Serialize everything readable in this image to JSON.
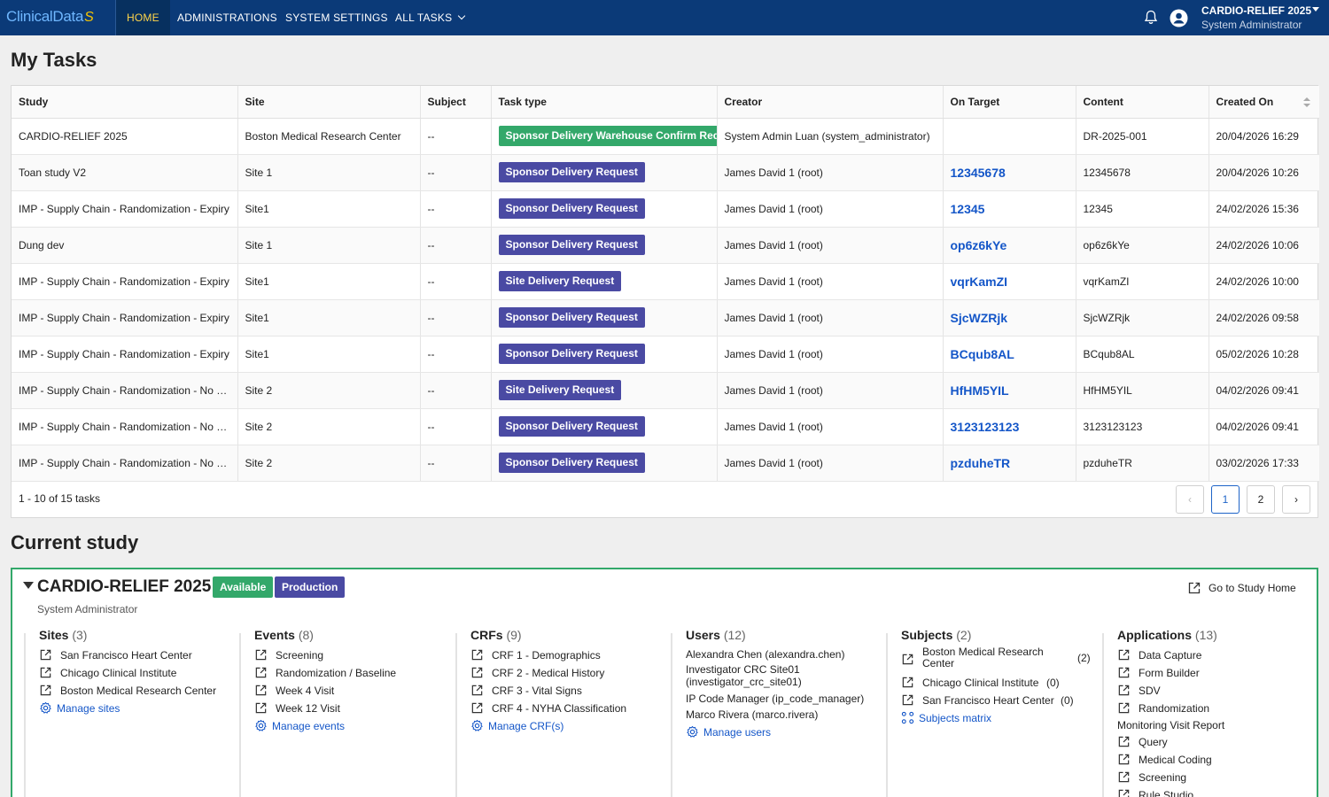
{
  "nav": {
    "logo_text": "ClinicalData",
    "logo_mark": "S",
    "items": [
      {
        "label": "HOME",
        "active": true
      },
      {
        "label": "ADMINISTRATIONS"
      },
      {
        "label": "SYSTEM SETTINGS"
      },
      {
        "label": "ALL TASKS"
      }
    ],
    "user_name": "CARDIO-RELIEF 2025",
    "user_role": "System Administrator"
  },
  "tasks": {
    "heading": "My Tasks",
    "columns": [
      "Study",
      "Site",
      "Subject",
      "Task type",
      "Creator",
      "On Target",
      "Content",
      "Created On"
    ],
    "rows": [
      {
        "study": "CARDIO-RELIEF 2025",
        "site": "Boston Medical Research Center",
        "subject": "--",
        "task_type": "Sponsor Delivery Warehouse Confirm Request",
        "task_color": "green",
        "creator": "System Admin Luan (system_administrator)",
        "on_target": "",
        "content": "DR-2025-001",
        "created_on": "20/04/2026 16:29"
      },
      {
        "study": "Toan study V2",
        "site": "Site 1",
        "subject": "--",
        "task_type": "Sponsor Delivery Request",
        "task_color": "purple",
        "creator": "James David 1 (root)",
        "on_target": "12345678",
        "content": "12345678",
        "created_on": "20/04/2026 10:26"
      },
      {
        "study": "IMP - Supply Chain - Randomization - Expiry",
        "site": "Site1",
        "subject": "--",
        "task_type": "Sponsor Delivery Request",
        "task_color": "purple",
        "creator": "James David 1 (root)",
        "on_target": "12345",
        "content": "12345",
        "created_on": "24/02/2026 15:36"
      },
      {
        "study": "Dung dev",
        "site": "Site 1",
        "subject": "--",
        "task_type": "Sponsor Delivery Request",
        "task_color": "purple",
        "creator": "James David 1 (root)",
        "on_target": "op6z6kYe",
        "content": "op6z6kYe",
        "created_on": "24/02/2026 10:06"
      },
      {
        "study": "IMP - Supply Chain - Randomization - Expiry",
        "site": "Site1",
        "subject": "--",
        "task_type": "Site Delivery Request",
        "task_color": "purple",
        "creator": "James David 1 (root)",
        "on_target": "vqrKamZI",
        "content": "vqrKamZI",
        "created_on": "24/02/2026 10:00"
      },
      {
        "study": "IMP - Supply Chain - Randomization - Expiry",
        "site": "Site1",
        "subject": "--",
        "task_type": "Sponsor Delivery Request",
        "task_color": "purple",
        "creator": "James David 1 (root)",
        "on_target": "SjcWZRjk",
        "content": "SjcWZRjk",
        "created_on": "24/02/2026 09:58"
      },
      {
        "study": "IMP - Supply Chain - Randomization - Expiry",
        "site": "Site1",
        "subject": "--",
        "task_type": "Sponsor Delivery Request",
        "task_color": "purple",
        "creator": "James David 1 (root)",
        "on_target": "BCqub8AL",
        "content": "BCqub8AL",
        "created_on": "05/02/2026 10:28"
      },
      {
        "study": "IMP - Supply Chain - Randomization - No Expiry",
        "site": "Site 2",
        "subject": "--",
        "task_type": "Site Delivery Request",
        "task_color": "purple",
        "creator": "James David 1 (root)",
        "on_target": "HfHM5YIL",
        "content": "HfHM5YIL",
        "created_on": "04/02/2026 09:41"
      },
      {
        "study": "IMP - Supply Chain - Randomization - No Expiry",
        "site": "Site 2",
        "subject": "--",
        "task_type": "Sponsor Delivery Request",
        "task_color": "purple",
        "creator": "James David 1 (root)",
        "on_target": "3123123123",
        "content": "3123123123",
        "created_on": "04/02/2026 09:41"
      },
      {
        "study": "IMP - Supply Chain - Randomization - No Expiry",
        "site": "Site 2",
        "subject": "--",
        "task_type": "Sponsor Delivery Request",
        "task_color": "purple",
        "creator": "James David 1 (root)",
        "on_target": "pzduheTR",
        "content": "pzduheTR",
        "created_on": "03/02/2026 17:33"
      }
    ],
    "count_text": "1 - 10 of 15 tasks",
    "pages": [
      "1",
      "2"
    ],
    "prev_symbol": "‹",
    "next_symbol": "›"
  },
  "current_study": {
    "heading": "Current study",
    "name": "CARDIO-RELIEF 2025",
    "status_badge": "Available",
    "env_badge": "Production",
    "role": "System Administrator",
    "go_home_label": "Go to Study Home",
    "sites": {
      "title": "Sites",
      "count": "(3)",
      "items": [
        "San Francisco Heart Center",
        "Chicago Clinical Institute",
        "Boston Medical Research Center"
      ],
      "manage": "Manage sites"
    },
    "events": {
      "title": "Events",
      "count": "(8)",
      "items": [
        "Screening",
        "Randomization / Baseline",
        "Week 4 Visit",
        "Week 12 Visit"
      ],
      "manage": "Manage events"
    },
    "crfs": {
      "title": "CRFs",
      "count": "(9)",
      "items": [
        "CRF 1 - Demographics",
        "CRF 2 - Medical History",
        "CRF 3 - Vital Signs",
        "CRF 4 - NYHA Classification"
      ],
      "manage": "Manage CRF(s)"
    },
    "users": {
      "title": "Users",
      "count": "(12)",
      "items": [
        "Alexandra Chen (alexandra.chen)",
        "Investigator CRC Site01 (investigator_crc_site01)",
        "IP Code Manager (ip_code_manager)",
        "Marco Rivera (marco.rivera)"
      ],
      "manage": "Manage users"
    },
    "subjects": {
      "title": "Subjects",
      "count": "(2)",
      "items": [
        {
          "name": "Boston Medical Research Center",
          "count": "(2)"
        },
        {
          "name": "Chicago Clinical Institute",
          "count": "(0)"
        },
        {
          "name": "San Francisco Heart Center",
          "count": "(0)"
        }
      ],
      "manage": "Subjects matrix"
    },
    "applications": {
      "title": "Applications",
      "count": "(13)",
      "items": [
        {
          "label": "Data Capture",
          "icon": true
        },
        {
          "label": "Form Builder",
          "icon": true
        },
        {
          "label": "SDV",
          "icon": true
        },
        {
          "label": "Randomization",
          "icon": true
        },
        {
          "label": "Monitoring Visit Report",
          "icon": false
        },
        {
          "label": "Query",
          "icon": true
        },
        {
          "label": "Medical Coding",
          "icon": true
        },
        {
          "label": "Screening",
          "icon": true
        },
        {
          "label": "Rule Studio",
          "icon": true
        }
      ]
    }
  },
  "colors": {
    "nav_bg": "#0b3a78",
    "accent_green": "#33a86a",
    "accent_purple": "#4a4aa3",
    "link_blue": "#1456c8",
    "active_nav_text": "#ffd54a"
  }
}
